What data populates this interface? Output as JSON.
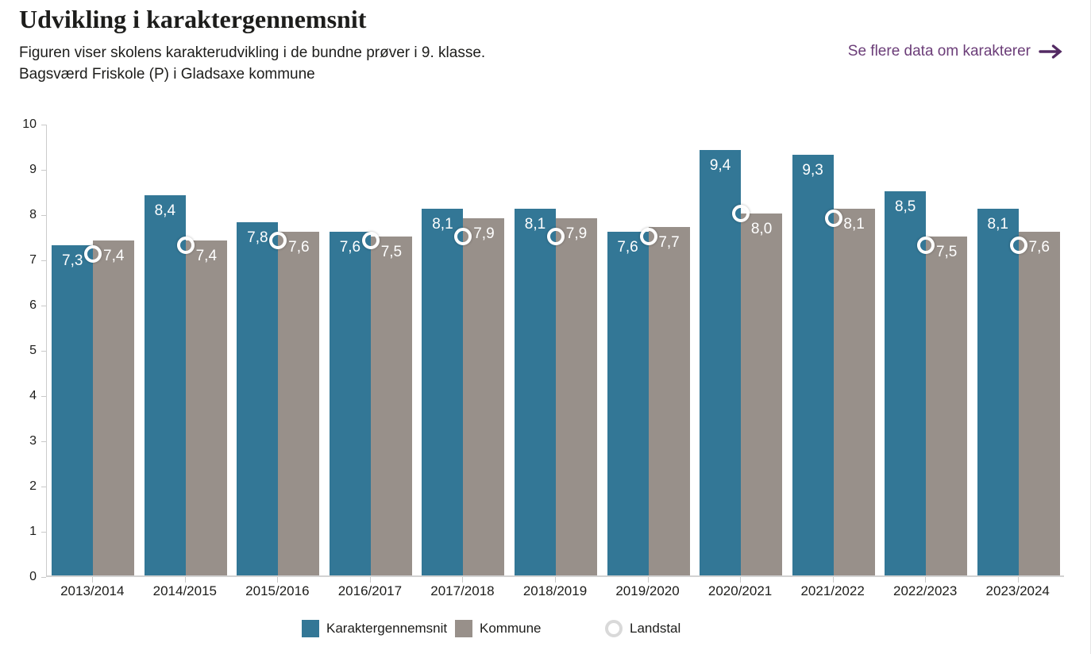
{
  "header": {
    "title": "Udvikling i karaktergennemsnit",
    "subtitle_line1": "Figuren viser skolens karakterudvikling i de bundne prøver i 9. klasse.",
    "subtitle_line2": "Bagsværd Friskole (P) i Gladsaxe kommune",
    "link_label": "Se flere data om karakterer"
  },
  "colors": {
    "school_bar": "#337796",
    "municipality_bar": "#98908a",
    "link": "#6b3d78",
    "link_arrow": "#532a63",
    "text": "#1d1d1b",
    "axis_line": "#cccccc",
    "bar_label_text": "#ffffff",
    "landstal_ring": "#ffffff"
  },
  "chart_data": {
    "type": "bar",
    "title": "Udvikling i karaktergennemsnit",
    "xlabel": "",
    "ylabel": "",
    "ylim": [
      0,
      10
    ],
    "yticks": [
      0,
      1,
      2,
      3,
      4,
      5,
      6,
      7,
      8,
      9,
      10
    ],
    "grid": false,
    "legend_position": "bottom",
    "categories": [
      "2013/2014",
      "2014/2015",
      "2015/2016",
      "2016/2017",
      "2017/2018",
      "2018/2019",
      "2019/2020",
      "2020/2021",
      "2021/2022",
      "2022/2023",
      "2023/2024"
    ],
    "series": [
      {
        "name": "Karaktergennemsnit",
        "mark": "bar",
        "color": "#337796",
        "values": [
          7.3,
          8.4,
          7.8,
          7.6,
          8.1,
          8.1,
          7.6,
          9.4,
          9.3,
          8.5,
          8.1
        ],
        "labels": [
          "7,3",
          "8,4",
          "7,8",
          "7,6",
          "8,1",
          "8,1",
          "7,6",
          "9,4",
          "9,3",
          "8,5",
          "8,1"
        ]
      },
      {
        "name": "Kommune",
        "mark": "bar",
        "color": "#98908a",
        "values": [
          7.4,
          7.4,
          7.6,
          7.5,
          7.9,
          7.9,
          7.7,
          8.0,
          8.1,
          7.5,
          7.6
        ],
        "labels": [
          "7,4",
          "7,4",
          "7,6",
          "7,5",
          "7,9",
          "7,9",
          "7,7",
          "8,0",
          "8,1",
          "7,5",
          "7,6"
        ]
      },
      {
        "name": "Landstal",
        "mark": "circle-marker",
        "color": "#ffffff",
        "values": [
          7.1,
          7.3,
          7.4,
          7.4,
          7.5,
          7.5,
          7.5,
          8.0,
          7.9,
          7.3,
          7.3
        ],
        "labels": []
      }
    ]
  },
  "legend": {
    "items": [
      {
        "label": "Karaktergennemsnit",
        "swatch": "square",
        "color": "#337796"
      },
      {
        "label": "Kommune",
        "swatch": "square",
        "color": "#98908a"
      },
      {
        "label": "Landstal",
        "swatch": "ring",
        "color": "#d9d9d9"
      }
    ]
  }
}
